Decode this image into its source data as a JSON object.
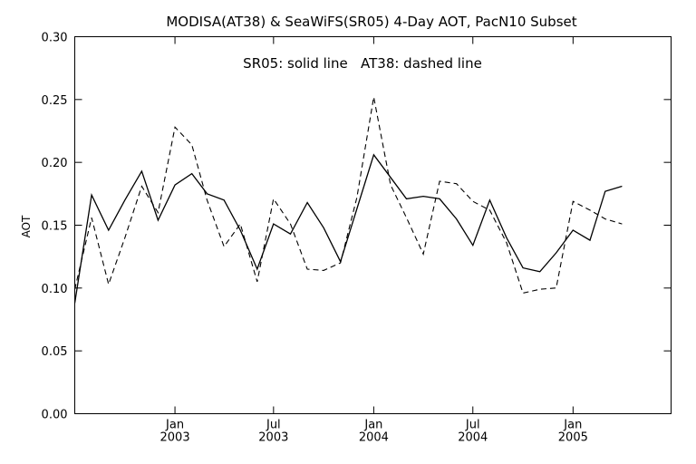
{
  "chart_data": {
    "type": "line",
    "title": "MODISA(AT38) & SeaWiFS(SR05) 4-Day AOT, PacN10 Subset",
    "annotation": "SR05: solid line   AT38: dashed line",
    "ylabel": "AOT",
    "xlabel": "",
    "ylim": [
      0.0,
      0.3
    ],
    "xlim": [
      "2002-07-01",
      "2005-06-30"
    ],
    "grid": false,
    "yticks": [
      "0.00",
      "0.05",
      "0.10",
      "0.15",
      "0.20",
      "0.25",
      "0.30"
    ],
    "xticks": [
      {
        "x": "2003-01-01",
        "label": "Jan",
        "sublabel": "2003"
      },
      {
        "x": "2003-07-01",
        "label": "Jul",
        "sublabel": "2003"
      },
      {
        "x": "2004-01-01",
        "label": "Jan",
        "sublabel": "2004"
      },
      {
        "x": "2004-07-01",
        "label": "Jul",
        "sublabel": "2004"
      },
      {
        "x": "2005-01-01",
        "label": "Jan",
        "sublabel": "2005"
      }
    ],
    "series": [
      {
        "name": "SR05",
        "style": "solid",
        "x": [
          "2002-07-01",
          "2002-08-01",
          "2002-09-01",
          "2002-10-01",
          "2002-11-01",
          "2002-12-01",
          "2003-01-01",
          "2003-02-01",
          "2003-03-01",
          "2003-04-01",
          "2003-05-01",
          "2003-06-01",
          "2003-07-01",
          "2003-08-01",
          "2003-09-01",
          "2003-10-01",
          "2003-11-01",
          "2003-12-01",
          "2004-01-01",
          "2004-02-01",
          "2004-03-01",
          "2004-04-01",
          "2004-05-01",
          "2004-06-01",
          "2004-07-01",
          "2004-08-01",
          "2004-09-01",
          "2004-10-01",
          "2004-11-01",
          "2004-12-01",
          "2005-01-01",
          "2005-02-01",
          "2005-03-01",
          "2005-04-01"
        ],
        "values": [
          0.088,
          0.174,
          0.146,
          0.17,
          0.193,
          0.154,
          0.182,
          0.191,
          0.175,
          0.17,
          0.146,
          0.115,
          0.151,
          0.143,
          0.168,
          0.148,
          0.121,
          0.163,
          0.206,
          0.188,
          0.171,
          0.173,
          0.171,
          0.155,
          0.134,
          0.17,
          0.14,
          0.116,
          0.113,
          0.128,
          0.146,
          0.138,
          0.177,
          0.181
        ]
      },
      {
        "name": "AT38",
        "style": "dashed",
        "x": [
          "2002-07-01",
          "2002-08-01",
          "2002-09-01",
          "2002-10-01",
          "2002-11-01",
          "2002-12-01",
          "2003-01-01",
          "2003-02-01",
          "2003-03-01",
          "2003-04-01",
          "2003-05-01",
          "2003-06-01",
          "2003-07-01",
          "2003-08-01",
          "2003-09-01",
          "2003-10-01",
          "2003-11-01",
          "2003-12-01",
          "2004-01-01",
          "2004-02-01",
          "2004-03-01",
          "2004-04-01",
          "2004-05-01",
          "2004-06-01",
          "2004-07-01",
          "2004-08-01",
          "2004-09-01",
          "2004-10-01",
          "2004-11-01",
          "2004-12-01",
          "2005-01-01",
          "2005-02-01",
          "2005-03-01",
          "2005-04-01"
        ],
        "values": [
          0.099,
          0.156,
          0.103,
          0.14,
          0.181,
          0.16,
          0.228,
          0.214,
          0.17,
          0.133,
          0.151,
          0.105,
          0.171,
          0.151,
          0.115,
          0.114,
          0.12,
          0.172,
          0.252,
          0.182,
          0.156,
          0.127,
          0.185,
          0.183,
          0.169,
          0.162,
          0.136,
          0.096,
          0.099,
          0.1,
          0.169,
          0.162,
          0.155,
          0.151
        ]
      }
    ]
  }
}
